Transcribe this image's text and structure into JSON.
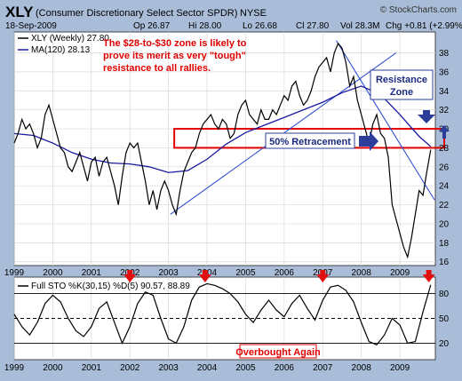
{
  "header": {
    "symbol": "XLY",
    "name": "(Consumer Discretionary Select Sector SPDR)",
    "exchange": "NYSE",
    "source": "© StockCharts.com",
    "date": "18-Sep-2009",
    "op": "Op 26.87",
    "hi": "Hi 28.00",
    "lo": "Lo 26.68",
    "cl": "Cl 27.80",
    "vol": "Vol 28.3M",
    "chg": "Chg +0.81 (+2.99%)"
  },
  "legend": {
    "price": "XLY (Weekly) 27.80",
    "ma": "MA(120) 28.13",
    "sto": "Full STO %K(30,15) %D(5) 90.57, 88.89"
  },
  "annotations": {
    "note": [
      "The $28-to-$30 zone is likely to",
      "prove its merit as very \"tough\"",
      "resistance to all rallies."
    ],
    "resistance": [
      "Resistance",
      "Zone"
    ],
    "retracement": "50% Retracement",
    "overbought": "Overbought Again"
  },
  "colors": {
    "background": "#a9bdd8",
    "plot": "#ffffff",
    "price": "#000000",
    "ma": "#1a1aa0",
    "trendline": "#3050d0",
    "zone": "#e00000",
    "arrow_blue": "#2b3f9a",
    "arrow_red": "#e01010",
    "note_bg": "#d02020"
  },
  "chart_data": [
    {
      "type": "line",
      "title": "XLY (Weekly)",
      "y_ticks": [
        16,
        18,
        20,
        22,
        24,
        26,
        28,
        30,
        32,
        34,
        36,
        38
      ],
      "ylim": [
        15.6,
        40.2
      ],
      "x_ticks": [
        "1999",
        "2000",
        "2001",
        "2002",
        "2003",
        "2004",
        "2005",
        "2006",
        "2007",
        "2008",
        "2009"
      ],
      "xlim": [
        1999.0,
        2009.92
      ],
      "resistance_zone": [
        28,
        30
      ],
      "series": [
        {
          "name": "XLY (Weekly)",
          "x": [
            1999.0,
            1999.1,
            1999.2,
            1999.3,
            1999.4,
            1999.5,
            1999.6,
            1999.7,
            1999.8,
            1999.9,
            2000.0,
            2000.1,
            2000.2,
            2000.3,
            2000.4,
            2000.5,
            2000.6,
            2000.7,
            2000.8,
            2000.9,
            2001.0,
            2001.1,
            2001.2,
            2001.3,
            2001.4,
            2001.5,
            2001.6,
            2001.7,
            2001.8,
            2001.9,
            2002.0,
            2002.1,
            2002.2,
            2002.3,
            2002.4,
            2002.5,
            2002.6,
            2002.7,
            2002.8,
            2002.9,
            2003.0,
            2003.1,
            2003.2,
            2003.3,
            2003.4,
            2003.5,
            2003.6,
            2003.7,
            2003.8,
            2003.9,
            2004.0,
            2004.1,
            2004.2,
            2004.3,
            2004.4,
            2004.5,
            2004.6,
            2004.7,
            2004.8,
            2004.9,
            2005.0,
            2005.1,
            2005.2,
            2005.3,
            2005.4,
            2005.5,
            2005.6,
            2005.7,
            2005.8,
            2005.9,
            2006.0,
            2006.1,
            2006.2,
            2006.3,
            2006.4,
            2006.5,
            2006.6,
            2006.7,
            2006.8,
            2006.9,
            2007.0,
            2007.1,
            2007.2,
            2007.3,
            2007.4,
            2007.5,
            2007.6,
            2007.7,
            2007.8,
            2007.9,
            2008.0,
            2008.1,
            2008.2,
            2008.3,
            2008.4,
            2008.5,
            2008.6,
            2008.7,
            2008.8,
            2008.9,
            2009.0,
            2009.1,
            2009.2,
            2009.3,
            2009.4,
            2009.5,
            2009.6,
            2009.7,
            2009.8
          ],
          "values": [
            28.5,
            29.5,
            31.0,
            30.0,
            30.5,
            29.5,
            28.0,
            29.0,
            31.5,
            32.5,
            31.0,
            29.5,
            28.0,
            27.5,
            26.0,
            25.5,
            26.5,
            27.5,
            26.0,
            24.5,
            26.5,
            27.0,
            25.0,
            26.5,
            27.0,
            25.5,
            24.0,
            22.0,
            25.0,
            27.5,
            28.5,
            28.0,
            28.5,
            26.5,
            24.5,
            22.0,
            23.5,
            21.5,
            23.5,
            24.5,
            23.5,
            22.0,
            21.0,
            23.5,
            25.5,
            26.5,
            27.5,
            28.0,
            29.5,
            30.5,
            31.0,
            31.5,
            30.5,
            30.0,
            31.0,
            30.5,
            29.0,
            29.5,
            31.5,
            32.5,
            33.0,
            31.5,
            31.0,
            30.5,
            32.0,
            31.0,
            31.0,
            32.0,
            31.5,
            32.5,
            33.5,
            33.0,
            34.5,
            35.0,
            33.5,
            32.5,
            33.0,
            34.0,
            35.5,
            36.5,
            37.0,
            37.5,
            36.0,
            38.0,
            39.0,
            38.5,
            37.0,
            34.5,
            35.5,
            33.0,
            31.5,
            30.0,
            28.5,
            30.5,
            31.5,
            29.5,
            29.0,
            27.0,
            22.0,
            20.5,
            19.0,
            17.5,
            16.5,
            18.5,
            21.0,
            23.5,
            23.0,
            25.5,
            27.8
          ]
        },
        {
          "name": "MA(120)",
          "x": [
            1999.0,
            1999.5,
            2000.0,
            2000.5,
            2001.0,
            2001.5,
            2002.0,
            2002.5,
            2003.0,
            2003.5,
            2004.0,
            2004.5,
            2005.0,
            2005.5,
            2006.0,
            2006.5,
            2007.0,
            2007.5,
            2008.0,
            2008.5,
            2009.0,
            2009.5,
            2009.8
          ],
          "values": [
            29.5,
            29.3,
            28.5,
            27.5,
            26.8,
            26.4,
            26.3,
            26.0,
            25.4,
            25.6,
            26.8,
            28.4,
            29.6,
            30.4,
            31.2,
            32.0,
            32.8,
            33.8,
            34.5,
            33.6,
            31.5,
            29.2,
            28.13
          ]
        }
      ]
    },
    {
      "type": "line",
      "title": "Full STO %K(30,15) %D(5)",
      "y_ticks": [
        20,
        50,
        80
      ],
      "ylim": [
        0,
        100
      ],
      "x_ticks": [
        "1999",
        "2000",
        "2001",
        "2002",
        "2003",
        "2004",
        "2005",
        "2006",
        "2007",
        "2008",
        "2009"
      ],
      "xlim": [
        1999.0,
        2009.92
      ],
      "series": [
        {
          "name": "Full STO",
          "x": [
            1999.0,
            1999.2,
            1999.4,
            1999.6,
            1999.8,
            2000.0,
            2000.2,
            2000.4,
            2000.6,
            2000.8,
            2001.0,
            2001.2,
            2001.4,
            2001.6,
            2001.8,
            2002.0,
            2002.2,
            2002.4,
            2002.6,
            2002.8,
            2003.0,
            2003.2,
            2003.4,
            2003.6,
            2003.8,
            2004.0,
            2004.2,
            2004.4,
            2004.6,
            2004.8,
            2005.0,
            2005.2,
            2005.4,
            2005.6,
            2005.8,
            2006.0,
            2006.2,
            2006.4,
            2006.6,
            2006.8,
            2007.0,
            2007.2,
            2007.4,
            2007.6,
            2007.8,
            2008.0,
            2008.2,
            2008.4,
            2008.6,
            2008.8,
            2009.0,
            2009.2,
            2009.4,
            2009.6,
            2009.8
          ],
          "values": [
            55,
            40,
            30,
            45,
            68,
            78,
            70,
            50,
            35,
            28,
            40,
            62,
            70,
            45,
            20,
            40,
            68,
            82,
            78,
            50,
            25,
            20,
            40,
            72,
            88,
            92,
            90,
            86,
            80,
            70,
            55,
            45,
            60,
            72,
            60,
            52,
            68,
            78,
            62,
            48,
            72,
            88,
            90,
            84,
            70,
            45,
            22,
            18,
            30,
            50,
            42,
            20,
            22,
            58,
            90.57
          ]
        }
      ]
    }
  ]
}
